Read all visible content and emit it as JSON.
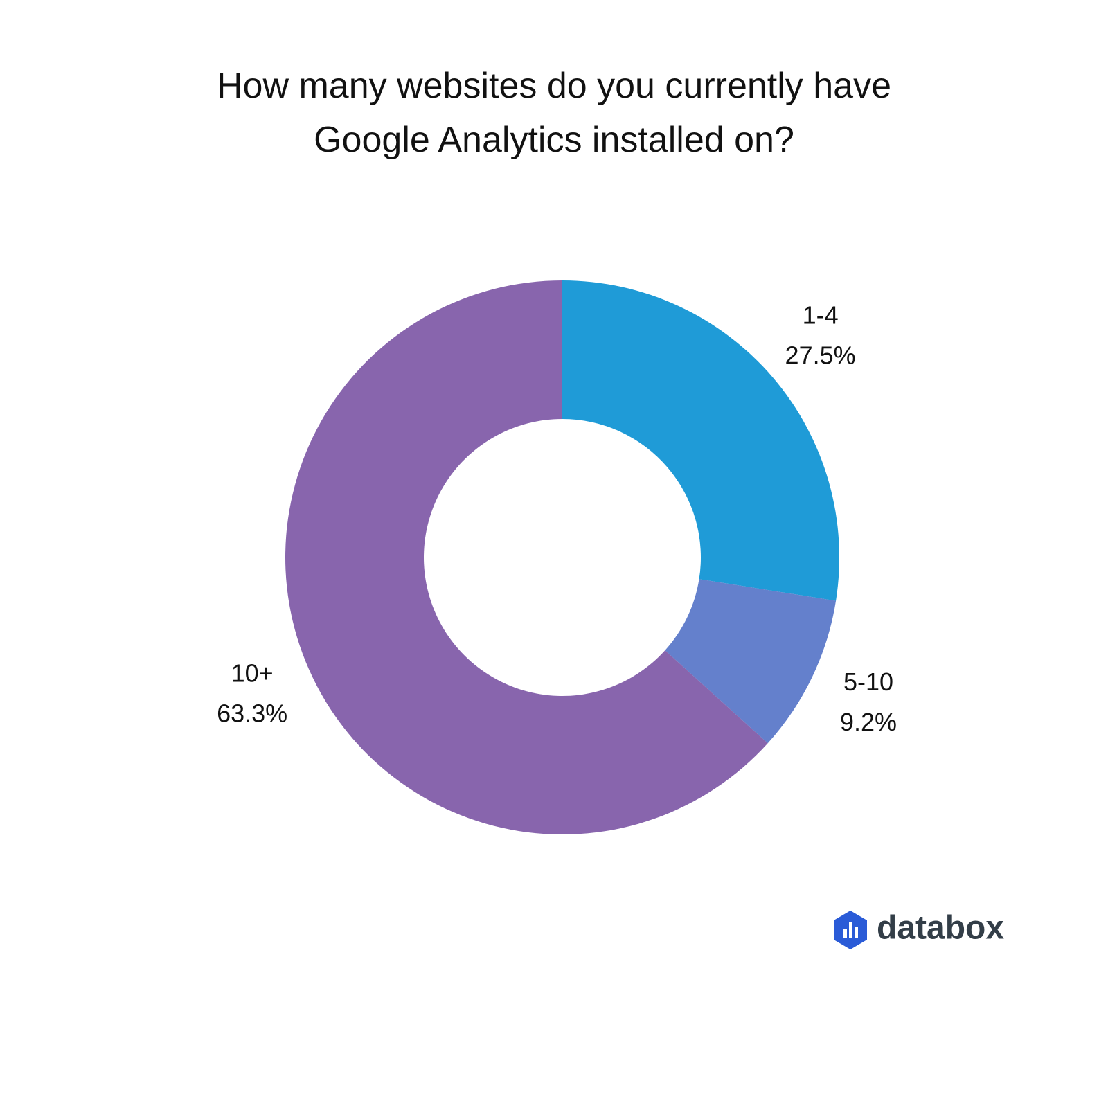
{
  "chart_data": {
    "type": "donut",
    "title": "How many websites do you currently have Google Analytics installed on?",
    "categories": [
      "1-4",
      "5-10",
      "10+"
    ],
    "values": [
      27.5,
      9.2,
      63.3
    ],
    "value_labels": [
      "27.5%",
      "9.2%",
      "63.3%"
    ],
    "colors": [
      "#1f9bd7",
      "#6480cc",
      "#8865ad"
    ]
  },
  "logo": "databox"
}
